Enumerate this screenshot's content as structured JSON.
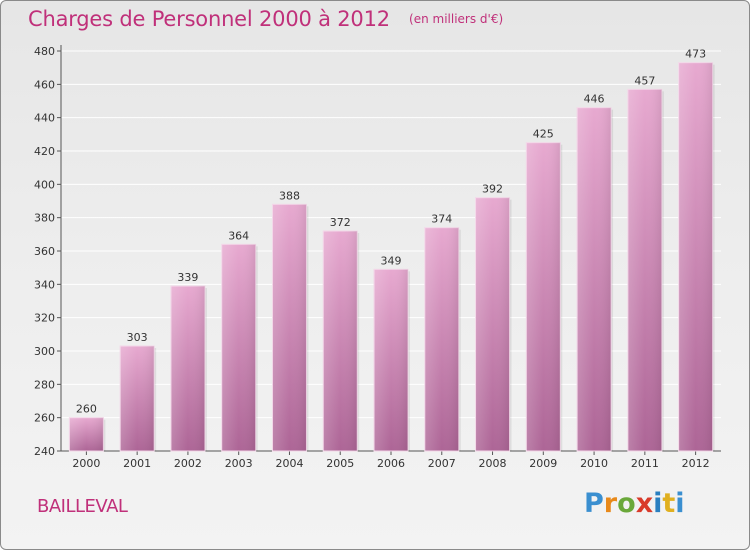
{
  "header": {
    "title": "Charges de Personnel 2000 à 2012",
    "subtitle": "(en milliers d'€)"
  },
  "footer": {
    "place": "BAILLEVAL",
    "logo": "Proxiti"
  },
  "colors": {
    "title": "#c0307a",
    "bar_top": "#e7a9d0",
    "bar_bottom": "#ad6596",
    "axis": "#555555",
    "grid": "#ffffff"
  },
  "chart_data": {
    "type": "bar",
    "categories": [
      "2000",
      "2001",
      "2002",
      "2003",
      "2004",
      "2005",
      "2006",
      "2007",
      "2008",
      "2009",
      "2010",
      "2011",
      "2012"
    ],
    "values": [
      260,
      303,
      339,
      364,
      388,
      372,
      349,
      374,
      392,
      425,
      446,
      457,
      473
    ],
    "ylim": [
      240,
      480
    ],
    "yticks": [
      240,
      260,
      280,
      300,
      320,
      340,
      360,
      380,
      400,
      420,
      440,
      460,
      480
    ],
    "grid": true,
    "data_labels": true
  }
}
